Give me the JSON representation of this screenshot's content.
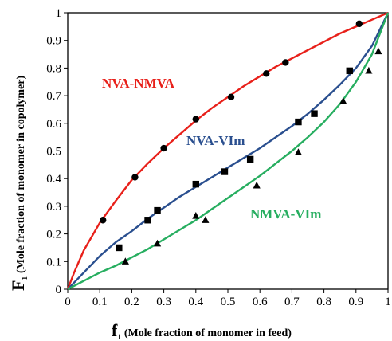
{
  "chart_data": {
    "type": "scatter",
    "title": "",
    "xlabel": {
      "symbol": "f",
      "subscript": "1",
      "text": "(Mole fraction of monomer in feed)"
    },
    "ylabel": {
      "symbol": "F",
      "subscript": "1",
      "text": "(Mole fraction of monomer in copolymer)"
    },
    "xlim": [
      0,
      1
    ],
    "ylim": [
      0,
      1
    ],
    "x_ticks": [
      "0",
      "0.1",
      "0.2",
      "0.3",
      "0.4",
      "0.5",
      "0.6",
      "0.7",
      "0.8",
      "0.9",
      "1"
    ],
    "y_ticks": [
      "0",
      "0.1",
      "0.2",
      "0.3",
      "0.4",
      "0.5",
      "0.6",
      "0.7",
      "0.8",
      "0.9",
      "1"
    ],
    "grid": false,
    "series": [
      {
        "name": "NVA-NMVA",
        "color": "#e8201a",
        "marker": "circle",
        "points": [
          [
            0.11,
            0.25
          ],
          [
            0.21,
            0.405
          ],
          [
            0.3,
            0.51
          ],
          [
            0.4,
            0.615
          ],
          [
            0.51,
            0.695
          ],
          [
            0.62,
            0.78
          ],
          [
            0.68,
            0.82
          ],
          [
            0.91,
            0.96
          ]
        ],
        "curve": [
          [
            0,
            0
          ],
          [
            0.02,
            0.06
          ],
          [
            0.05,
            0.14
          ],
          [
            0.1,
            0.24
          ],
          [
            0.15,
            0.32
          ],
          [
            0.2,
            0.395
          ],
          [
            0.25,
            0.455
          ],
          [
            0.3,
            0.51
          ],
          [
            0.35,
            0.56
          ],
          [
            0.4,
            0.61
          ],
          [
            0.45,
            0.655
          ],
          [
            0.5,
            0.695
          ],
          [
            0.55,
            0.735
          ],
          [
            0.6,
            0.77
          ],
          [
            0.65,
            0.805
          ],
          [
            0.7,
            0.835
          ],
          [
            0.75,
            0.865
          ],
          [
            0.8,
            0.895
          ],
          [
            0.85,
            0.925
          ],
          [
            0.9,
            0.95
          ],
          [
            0.95,
            0.975
          ],
          [
            1,
            1
          ]
        ]
      },
      {
        "name": "NVA-VIm",
        "color": "#2a4f8f",
        "marker": "square",
        "points": [
          [
            0.16,
            0.15
          ],
          [
            0.25,
            0.25
          ],
          [
            0.28,
            0.285
          ],
          [
            0.4,
            0.38
          ],
          [
            0.49,
            0.425
          ],
          [
            0.57,
            0.47
          ],
          [
            0.72,
            0.605
          ],
          [
            0.77,
            0.635
          ],
          [
            0.88,
            0.79
          ]
        ],
        "curve": [
          [
            0,
            0
          ],
          [
            0.05,
            0.06
          ],
          [
            0.1,
            0.12
          ],
          [
            0.15,
            0.17
          ],
          [
            0.2,
            0.21
          ],
          [
            0.25,
            0.255
          ],
          [
            0.3,
            0.295
          ],
          [
            0.35,
            0.335
          ],
          [
            0.4,
            0.37
          ],
          [
            0.45,
            0.405
          ],
          [
            0.5,
            0.44
          ],
          [
            0.55,
            0.475
          ],
          [
            0.6,
            0.51
          ],
          [
            0.65,
            0.55
          ],
          [
            0.7,
            0.59
          ],
          [
            0.75,
            0.635
          ],
          [
            0.8,
            0.685
          ],
          [
            0.85,
            0.74
          ],
          [
            0.9,
            0.8
          ],
          [
            0.95,
            0.88
          ],
          [
            1,
            1
          ]
        ]
      },
      {
        "name": "NMVA-VIm",
        "color": "#27ae60",
        "marker": "triangle",
        "points": [
          [
            0.18,
            0.1
          ],
          [
            0.28,
            0.165
          ],
          [
            0.4,
            0.265
          ],
          [
            0.43,
            0.25
          ],
          [
            0.59,
            0.375
          ],
          [
            0.72,
            0.495
          ],
          [
            0.86,
            0.68
          ],
          [
            0.94,
            0.79
          ],
          [
            0.97,
            0.86
          ]
        ],
        "curve": [
          [
            0,
            0
          ],
          [
            0.05,
            0.03
          ],
          [
            0.1,
            0.06
          ],
          [
            0.15,
            0.085
          ],
          [
            0.2,
            0.115
          ],
          [
            0.25,
            0.145
          ],
          [
            0.3,
            0.18
          ],
          [
            0.35,
            0.215
          ],
          [
            0.4,
            0.25
          ],
          [
            0.45,
            0.29
          ],
          [
            0.5,
            0.33
          ],
          [
            0.55,
            0.37
          ],
          [
            0.6,
            0.41
          ],
          [
            0.65,
            0.455
          ],
          [
            0.7,
            0.5
          ],
          [
            0.75,
            0.55
          ],
          [
            0.8,
            0.605
          ],
          [
            0.85,
            0.67
          ],
          [
            0.9,
            0.75
          ],
          [
            0.95,
            0.85
          ],
          [
            1,
            1
          ]
        ]
      }
    ]
  }
}
